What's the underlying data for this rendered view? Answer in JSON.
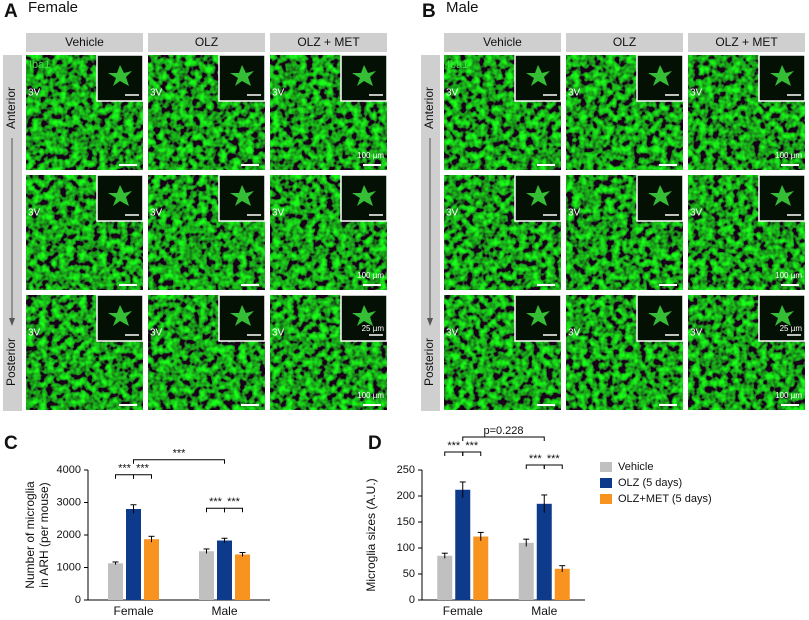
{
  "panels": [
    {
      "letter": "A",
      "title": "Female",
      "columns": [
        "Vehicle",
        "OLZ",
        "OLZ + MET"
      ],
      "anterior": "Anterior",
      "posterior": "Posterior",
      "stain": "Iba1",
      "region": "3V",
      "scale_bar_label": "100 µm",
      "inset_scale_bar_label": "25 µm"
    },
    {
      "letter": "B",
      "title": "Male",
      "columns": [
        "Vehicle",
        "OLZ",
        "OLZ + MET"
      ],
      "anterior": "Anterior",
      "posterior": "Posterior",
      "stain": "Iba1",
      "region": "3V",
      "scale_bar_label": "100 µm",
      "inset_scale_bar_label": "25 µm"
    }
  ],
  "chart_data": [
    {
      "type": "bar",
      "letter": "C",
      "ylabel": [
        "Number of microglia",
        "in ARH (per mouse)"
      ],
      "categories": [
        "Female",
        "Male"
      ],
      "series": [
        {
          "name": "Vehicle",
          "color": "#c0c0c0",
          "values": [
            1130,
            1500
          ],
          "errors": [
            40,
            70
          ]
        },
        {
          "name": "OLZ (5 days)",
          "color": "#0d3a8a",
          "values": [
            2800,
            1830
          ],
          "errors": [
            130,
            70
          ]
        },
        {
          "name": "OLZ+MET (5 days)",
          "color": "#f7931e",
          "values": [
            1870,
            1400
          ],
          "errors": [
            90,
            60
          ]
        }
      ],
      "ylim": [
        0,
        4000
      ],
      "yticks": [
        0,
        1000,
        2000,
        3000,
        4000
      ],
      "annotations": [
        {
          "text": "***",
          "between": [
            [
              0,
              0
            ],
            [
              0,
              1
            ]
          ]
        },
        {
          "text": "***",
          "between": [
            [
              0,
              1
            ],
            [
              0,
              2
            ]
          ]
        },
        {
          "text": "***",
          "between": [
            [
              1,
              0
            ],
            [
              1,
              1
            ]
          ]
        },
        {
          "text": "***",
          "between": [
            [
              1,
              1
            ],
            [
              1,
              2
            ]
          ]
        },
        {
          "text": "***",
          "between": [
            [
              0,
              1
            ],
            [
              1,
              1
            ]
          ]
        }
      ]
    },
    {
      "type": "bar",
      "letter": "D",
      "ylabel": [
        "Microglia sizes (A.U.)"
      ],
      "categories": [
        "Female",
        "Male"
      ],
      "series": [
        {
          "name": "Vehicle",
          "color": "#c0c0c0",
          "values": [
            85,
            110
          ],
          "errors": [
            5,
            7
          ]
        },
        {
          "name": "OLZ (5 days)",
          "color": "#0d3a8a",
          "values": [
            212,
            185
          ],
          "errors": [
            15,
            17
          ]
        },
        {
          "name": "OLZ+MET (5 days)",
          "color": "#f7931e",
          "values": [
            122,
            60
          ],
          "errors": [
            8,
            6
          ]
        }
      ],
      "ylim": [
        0,
        250
      ],
      "yticks": [
        0,
        50,
        100,
        150,
        200,
        250
      ],
      "legend": "right",
      "annotations": [
        {
          "text": "***",
          "between": [
            [
              0,
              0
            ],
            [
              0,
              1
            ]
          ]
        },
        {
          "text": "***",
          "between": [
            [
              0,
              1
            ],
            [
              0,
              2
            ]
          ]
        },
        {
          "text": "***",
          "between": [
            [
              1,
              0
            ],
            [
              1,
              1
            ]
          ]
        },
        {
          "text": "***",
          "between": [
            [
              1,
              1
            ],
            [
              1,
              2
            ]
          ]
        },
        {
          "text": "p=0.228",
          "between": [
            [
              0,
              1
            ],
            [
              1,
              1
            ]
          ]
        }
      ]
    }
  ]
}
